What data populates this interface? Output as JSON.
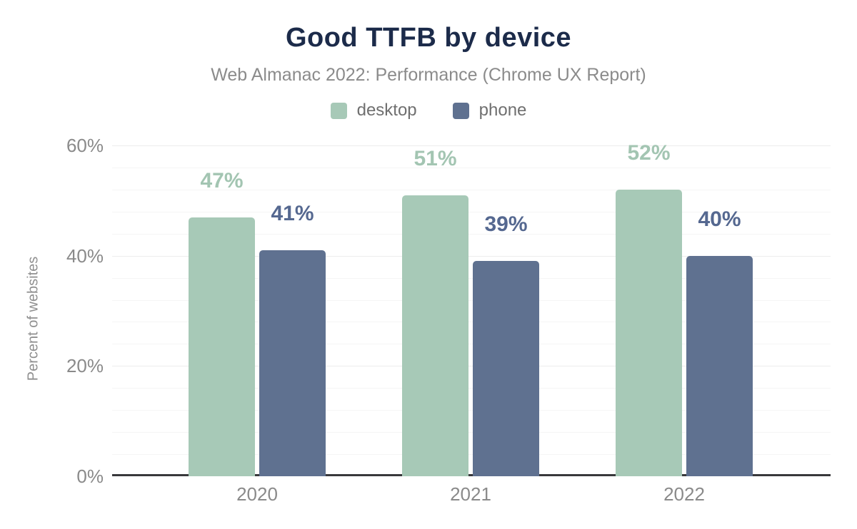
{
  "title": "Good TTFB by device",
  "subtitle": "Web Almanac 2022: Performance (Chrome UX Report)",
  "chart_data": {
    "type": "bar",
    "categories": [
      "2020",
      "2021",
      "2022"
    ],
    "series": [
      {
        "name": "desktop",
        "values": [
          47,
          51,
          52
        ],
        "color": "#a7c9b7",
        "label_color": "#a3c5b2"
      },
      {
        "name": "phone",
        "values": [
          41,
          39,
          40
        ],
        "color": "#5f7190",
        "label_color": "#556890"
      }
    ],
    "data_labels": [
      [
        "47%",
        "51%",
        "52%"
      ],
      [
        "41%",
        "39%",
        "40%"
      ]
    ],
    "xlabel": "",
    "ylabel": "Percent of websites",
    "ylim": [
      0,
      60
    ],
    "y_major_ticks": [
      0,
      20,
      40,
      60
    ],
    "y_major_tick_labels": [
      "0%",
      "20%",
      "40%",
      "60%"
    ],
    "y_minor_step": 4,
    "value_suffix": "%",
    "grid": true,
    "legend_position": "top",
    "title_color": "#1c2b4a",
    "text_color": "#8a8a8a",
    "grid_color": "#ececec",
    "axis_color": "#38383b"
  }
}
